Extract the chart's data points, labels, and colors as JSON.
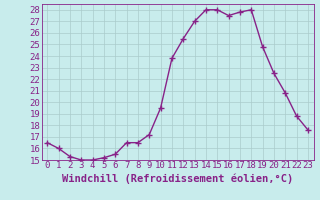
{
  "x": [
    0,
    1,
    2,
    3,
    4,
    5,
    6,
    7,
    8,
    9,
    10,
    11,
    12,
    13,
    14,
    15,
    16,
    17,
    18,
    19,
    20,
    21,
    22,
    23
  ],
  "y": [
    16.5,
    16.0,
    15.3,
    15.0,
    15.0,
    15.2,
    15.5,
    16.5,
    16.5,
    17.2,
    19.5,
    23.8,
    25.5,
    27.0,
    28.0,
    28.0,
    27.5,
    27.8,
    28.0,
    24.8,
    22.5,
    20.8,
    18.8,
    17.6
  ],
  "line_color": "#882288",
  "marker": "+",
  "marker_size": 4,
  "marker_linewidth": 1.0,
  "bg_color": "#c8ecec",
  "grid_color": "#aacccc",
  "xlabel": "Windchill (Refroidissement éolien,°C)",
  "xlabel_color": "#882288",
  "tick_color": "#882288",
  "ylim": [
    15,
    28.5
  ],
  "xlim": [
    -0.5,
    23.5
  ],
  "yticks": [
    15,
    16,
    17,
    18,
    19,
    20,
    21,
    22,
    23,
    24,
    25,
    26,
    27,
    28
  ],
  "xticks": [
    0,
    1,
    2,
    3,
    4,
    5,
    6,
    7,
    8,
    9,
    10,
    11,
    12,
    13,
    14,
    15,
    16,
    17,
    18,
    19,
    20,
    21,
    22,
    23
  ],
  "linewidth": 1.0,
  "tick_fontsize": 6.5,
  "xlabel_fontsize": 7.5
}
